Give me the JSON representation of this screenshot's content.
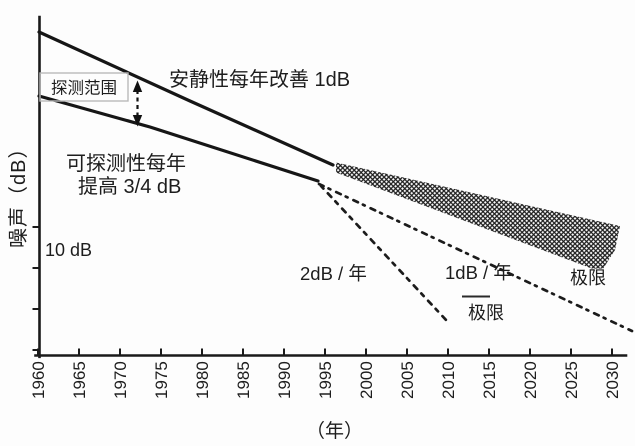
{
  "chart_data": {
    "type": "line",
    "title": "",
    "xlabel": "（年）",
    "ylabel": "噪声（dB）",
    "x_ticks": [
      "1960",
      "1965",
      "1970",
      "1975",
      "1980",
      "1985",
      "1990",
      "1995",
      "2000",
      "2005",
      "2010",
      "2015",
      "2020",
      "2025",
      "2030"
    ],
    "x_range": [
      1960,
      2030
    ],
    "grid": false,
    "legend": false,
    "y_axis": {
      "scale_note": "10 dB",
      "note": "no absolute y tick numbers shown; interval between ticks = 10 dB",
      "visible_tick_count": 4
    },
    "series": [
      {
        "name": "安静性每年改善 1dB",
        "style": "solid",
        "x": [
          1960,
          1995
        ],
        "y_rel_db": [
          79,
          46
        ]
      },
      {
        "name": "可探测性每年提高 3/4 dB",
        "style": "solid",
        "x": [
          1960,
          1995
        ],
        "y_rel_db": [
          63,
          42
        ]
      },
      {
        "name": "1dB / 年",
        "style": "dashed",
        "x": [
          1995,
          2030
        ],
        "y_rel_db": [
          42,
          6
        ]
      },
      {
        "name": "2dB / 年",
        "style": "dashed",
        "x": [
          1995,
          2010
        ],
        "y_rel_db": [
          42,
          8
        ]
      },
      {
        "name": "极限",
        "style": "hatched-band",
        "x": [
          1995,
          2030
        ],
        "y_rel_db_top": [
          47,
          31
        ],
        "y_rel_db_bottom": [
          45,
          20
        ]
      }
    ],
    "annotations": [
      {
        "text": "探测范围",
        "type": "boxed-label",
        "note": "dashed double arrow between the two solid lines near 1972"
      },
      {
        "text": "10 dB",
        "type": "scale-note"
      },
      {
        "text": "极限",
        "type": "label",
        "position": "below 1dB/年 dashed line"
      },
      {
        "text": "极限",
        "type": "label",
        "position": "right end of hatched band"
      }
    ]
  },
  "labels": {
    "ylabel": "噪声（dB）",
    "xlabel": "（年）",
    "quietness_line": "安静性每年改善 1dB",
    "detectability_line_1": "可探测性每年",
    "detectability_line_2": "提高 3/4 dB",
    "detection_range": "探测范围",
    "scale_note": "10 dB",
    "rate_2db": "2dB / 年",
    "rate_1db": "1dB / 年",
    "limit_1": "极限",
    "limit_2": "极限"
  },
  "colors": {
    "ink": "#1b1b1b",
    "background": "#fdfdfd",
    "box_border": "#b9b9b9"
  }
}
